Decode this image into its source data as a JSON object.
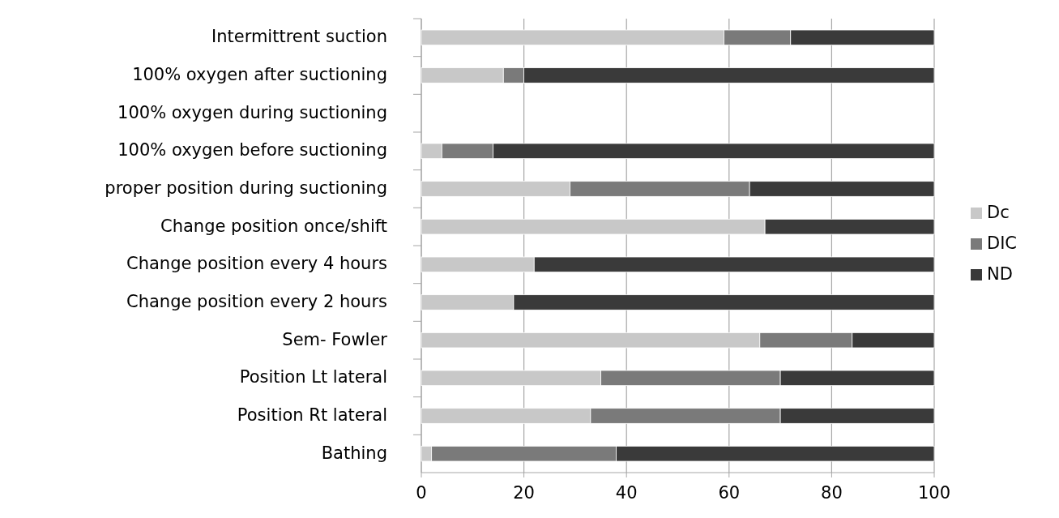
{
  "chart_data": {
    "type": "bar",
    "orientation": "horizontal",
    "stacked": true,
    "categories": [
      "Intermittrent suction",
      "100% oxygen after suctioning",
      "100% oxygen during suctioning",
      "100% oxygen before suctioning",
      "proper position during suctioning",
      "Change position once/shift",
      "Change position every 4 hours",
      "Change position every 2 hours",
      "Sem- Fowler",
      "Position Lt lateral",
      "Position Rt lateral",
      "Bathing"
    ],
    "series": [
      {
        "name": "Dc",
        "color": "#c8c8c8",
        "values": [
          59,
          16,
          0,
          4,
          29,
          67,
          22,
          18,
          66,
          35,
          33,
          2
        ]
      },
      {
        "name": "DIC",
        "color": "#7a7a7a",
        "values": [
          13,
          4,
          0,
          10,
          35,
          0,
          0,
          0,
          18,
          35,
          37,
          36
        ]
      },
      {
        "name": "ND",
        "color": "#3a3a3a",
        "values": [
          28,
          80,
          0,
          86,
          36,
          33,
          78,
          82,
          16,
          30,
          30,
          62
        ]
      }
    ],
    "xlim": [
      0,
      100
    ],
    "xticks": [
      0,
      20,
      40,
      60,
      80,
      100
    ],
    "grid": "x",
    "legend": "right"
  }
}
